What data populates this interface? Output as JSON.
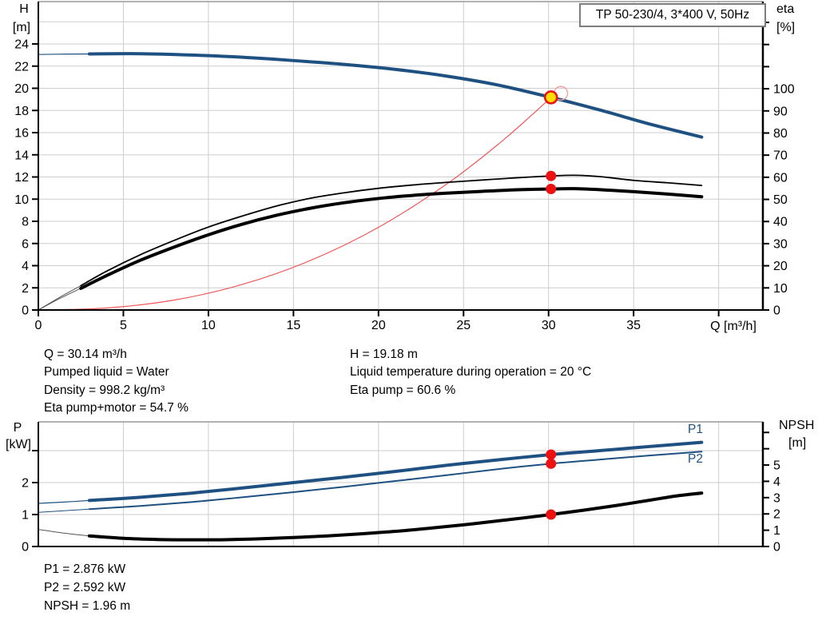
{
  "pump_title": "TP 50-230/4, 3*400 V, 50Hz",
  "colors": {
    "curve_blue": "#1e5181",
    "curve_black": "#000000",
    "lead_gray": "#555555",
    "system_red": "#ef5858",
    "dot_red": "#ee1111",
    "duty_yellow": "#ffdf00",
    "grid": "#cdcdcd",
    "frame": "#999999"
  },
  "results_top_left": [
    "Q = 30.14 m³/h",
    "Pumped liquid = Water",
    "Density = 998.2 kg/m³",
    "Eta pump+motor = 54.7 %"
  ],
  "results_top_right": [
    "H = 19.18 m",
    "Liquid temperature during operation = 20 °C",
    "Eta pump = 60.6 %"
  ],
  "results_bottom": [
    "P1 = 2.876 kW",
    "P2 = 2.592 kW",
    "NPSH = 1.96 m"
  ],
  "curve_labels": {
    "p1": "P1",
    "p2": "P2"
  },
  "chart_data": [
    {
      "id": "hq-eta-chart",
      "type": "line",
      "title": "TP 50-230/4, 3*400 V, 50Hz",
      "x_axis": {
        "label": "Q [m³/h]",
        "min": 0,
        "max": 42.6,
        "ticks": [
          0,
          5,
          10,
          15,
          20,
          25,
          30,
          35
        ],
        "minor_ticks": [
          40
        ],
        "gridlines": [
          5,
          10,
          15,
          20,
          25,
          30,
          35,
          40
        ]
      },
      "y_left": {
        "label": "H [m]",
        "min": 0,
        "max": 27.82,
        "ticks": [
          0,
          2,
          4,
          6,
          8,
          10,
          12,
          14,
          16,
          18,
          20,
          22,
          24
        ],
        "minor_ticks": [],
        "gridlines": [
          2,
          4,
          6,
          8,
          10,
          12,
          14,
          16,
          18,
          20,
          22,
          24,
          26
        ]
      },
      "y_right": {
        "label": "eta [%]",
        "min": 0,
        "max": 139.4,
        "ticks": [
          0,
          10,
          20,
          30,
          40,
          50,
          60,
          70,
          80,
          90,
          100
        ],
        "minor_ticks": [
          110,
          120,
          130
        ]
      },
      "series": [
        {
          "name": "system-curve",
          "axis": "left",
          "color": "#ef5858",
          "width": 1.2,
          "points": [
            [
              0,
              0
            ],
            [
              4,
              0.18
            ],
            [
              8,
              0.9
            ],
            [
              12,
              2.31
            ],
            [
              16,
              4.47
            ],
            [
              20,
              7.46
            ],
            [
              24,
              11.35
            ],
            [
              27,
              14.9
            ],
            [
              29,
              17.57
            ],
            [
              30.14,
              19.18
            ]
          ]
        },
        {
          "name": "head-curve-lead",
          "axis": "left",
          "color": "#1e5181",
          "width": 1.2,
          "points": [
            [
              0,
              23.05
            ],
            [
              1.5,
              23.08
            ],
            [
              3.5,
              23.1
            ]
          ]
        },
        {
          "name": "head-curve",
          "axis": "left",
          "color": "#1e5181",
          "width": 4,
          "points": [
            [
              3,
              23.1
            ],
            [
              6,
              23.12
            ],
            [
              9,
              23.0
            ],
            [
              12,
              22.8
            ],
            [
              15,
              22.5
            ],
            [
              18,
              22.15
            ],
            [
              21,
              21.7
            ],
            [
              24,
              21.1
            ],
            [
              27,
              20.3
            ],
            [
              30.14,
              19.18
            ],
            [
              33,
              18.05
            ],
            [
              36,
              16.75
            ],
            [
              39,
              15.6
            ]
          ]
        },
        {
          "name": "eta-pump-curve-lead",
          "axis": "right",
          "color": "#555555",
          "width": 1,
          "points": [
            [
              0,
              0
            ],
            [
              1.2,
              5.5
            ],
            [
              2.5,
              11
            ]
          ]
        },
        {
          "name": "eta-pump-curve",
          "axis": "right",
          "color": "#000000",
          "width": 1.8,
          "points": [
            [
              2.5,
              11
            ],
            [
              4,
              17.5
            ],
            [
              6,
              25
            ],
            [
              8,
              31.5
            ],
            [
              10,
              37.5
            ],
            [
              12,
              42.5
            ],
            [
              14,
              47
            ],
            [
              16,
              50.5
            ],
            [
              18,
              53
            ],
            [
              20,
              55
            ],
            [
              22,
              56.5
            ],
            [
              24,
              57.7
            ],
            [
              26,
              58.7
            ],
            [
              28,
              59.7
            ],
            [
              30.14,
              60.6
            ],
            [
              31.5,
              60.9
            ],
            [
              33,
              60.3
            ],
            [
              35,
              58.6
            ],
            [
              37,
              57.5
            ],
            [
              39,
              56.3
            ]
          ]
        },
        {
          "name": "eta-pump-motor-curve-lead",
          "axis": "right",
          "color": "#555555",
          "width": 1,
          "points": [
            [
              0,
              0
            ],
            [
              1.2,
              5
            ],
            [
              2.5,
              9.8
            ]
          ]
        },
        {
          "name": "eta-pump-motor-curve",
          "axis": "right",
          "color": "#000000",
          "width": 4,
          "points": [
            [
              2.5,
              9.8
            ],
            [
              4,
              15.5
            ],
            [
              6,
              22.5
            ],
            [
              8,
              28.5
            ],
            [
              10,
              34
            ],
            [
              12,
              38.8
            ],
            [
              14,
              42.8
            ],
            [
              16,
              46
            ],
            [
              18,
              48.5
            ],
            [
              20,
              50.4
            ],
            [
              22,
              51.8
            ],
            [
              24,
              52.8
            ],
            [
              26,
              53.6
            ],
            [
              28,
              54.3
            ],
            [
              30.14,
              54.7
            ],
            [
              31.5,
              54.85
            ],
            [
              33,
              54.4
            ],
            [
              35,
              53.5
            ],
            [
              37,
              52.4
            ],
            [
              39,
              51.2
            ]
          ]
        }
      ],
      "markers": [
        {
          "name": "duty-point-ghost",
          "axis": "left",
          "q": 30.72,
          "v": 19.55,
          "r": 8.5,
          "fill": "none",
          "stroke": "#f59f9f",
          "sw": 1.4,
          "interactable": false
        },
        {
          "name": "duty-point",
          "axis": "left",
          "q": 30.14,
          "v": 19.18,
          "r": 7.5,
          "fill": "#ffdf00",
          "stroke": "#ee1111",
          "sw": 2.6,
          "interactable": true
        },
        {
          "name": "eta-pump-dot",
          "axis": "right",
          "q": 30.14,
          "v": 60.6,
          "r": 6.5,
          "fill": "#ee1111",
          "stroke": "none",
          "sw": 0,
          "interactable": false
        },
        {
          "name": "eta-pump-motor-dot",
          "axis": "right",
          "q": 30.14,
          "v": 54.7,
          "r": 6.5,
          "fill": "#ee1111",
          "stroke": "none",
          "sw": 0,
          "interactable": false
        }
      ]
    },
    {
      "id": "power-npsh-chart",
      "type": "line",
      "x_axis": {
        "label": "",
        "min": 0,
        "max": 42.6,
        "ticks": [],
        "minor_ticks": [],
        "gridlines": [
          5,
          10,
          15,
          20,
          25,
          30,
          35,
          40
        ]
      },
      "y_left": {
        "label": "P [kW]",
        "min": 0,
        "max": 3.9,
        "ticks": [
          0,
          1,
          2
        ],
        "minor_ticks": [
          3
        ],
        "gridlines": [
          1,
          2,
          3
        ]
      },
      "y_right": {
        "label": "NPSH [m]",
        "min": 0,
        "max": 7.65,
        "ticks": [
          0,
          1,
          2,
          3,
          4,
          5
        ],
        "minor_ticks": [
          6,
          7
        ]
      },
      "series": [
        {
          "name": "p1-curve-lead",
          "axis": "left",
          "color": "#1e5181",
          "width": 1.2,
          "points": [
            [
              0,
              1.35
            ],
            [
              1.5,
              1.39
            ],
            [
              3,
              1.44
            ]
          ]
        },
        {
          "name": "p1-curve",
          "axis": "left",
          "color": "#1e5181",
          "width": 4,
          "points": [
            [
              3,
              1.44
            ],
            [
              6,
              1.54
            ],
            [
              9,
              1.67
            ],
            [
              12,
              1.83
            ],
            [
              15,
              2.0
            ],
            [
              18,
              2.17
            ],
            [
              21,
              2.35
            ],
            [
              24,
              2.54
            ],
            [
              27,
              2.71
            ],
            [
              30.14,
              2.876
            ],
            [
              33,
              3.0
            ],
            [
              36,
              3.13
            ],
            [
              39,
              3.26
            ]
          ]
        },
        {
          "name": "p2-curve-lead",
          "axis": "left",
          "color": "#1e5181",
          "width": 1,
          "points": [
            [
              0,
              1.07
            ],
            [
              1.5,
              1.12
            ],
            [
              3,
              1.17
            ]
          ]
        },
        {
          "name": "p2-curve",
          "axis": "left",
          "color": "#1e5181",
          "width": 2,
          "points": [
            [
              3,
              1.17
            ],
            [
              6,
              1.27
            ],
            [
              9,
              1.39
            ],
            [
              12,
              1.54
            ],
            [
              15,
              1.7
            ],
            [
              18,
              1.87
            ],
            [
              21,
              2.05
            ],
            [
              24,
              2.23
            ],
            [
              27,
              2.42
            ],
            [
              30.14,
              2.592
            ],
            [
              33,
              2.72
            ],
            [
              36,
              2.85
            ],
            [
              39,
              2.97
            ]
          ]
        },
        {
          "name": "npsh-curve-lead",
          "axis": "right",
          "color": "#555555",
          "width": 1,
          "points": [
            [
              0,
              1.05
            ],
            [
              1.5,
              0.82
            ],
            [
              3,
              0.65
            ]
          ]
        },
        {
          "name": "npsh-curve",
          "axis": "right",
          "color": "#000000",
          "width": 4,
          "points": [
            [
              3,
              0.65
            ],
            [
              5,
              0.5
            ],
            [
              7,
              0.43
            ],
            [
              9,
              0.41
            ],
            [
              11,
              0.42
            ],
            [
              13,
              0.47
            ],
            [
              15,
              0.55
            ],
            [
              17,
              0.65
            ],
            [
              19,
              0.78
            ],
            [
              21,
              0.93
            ],
            [
              23,
              1.12
            ],
            [
              25,
              1.33
            ],
            [
              27,
              1.57
            ],
            [
              28.5,
              1.75
            ],
            [
              30.14,
              1.96
            ],
            [
              32,
              2.22
            ],
            [
              34,
              2.52
            ],
            [
              36,
              2.85
            ],
            [
              37.5,
              3.1
            ],
            [
              39,
              3.28
            ]
          ]
        }
      ],
      "markers": [
        {
          "name": "p1-dot",
          "axis": "left",
          "q": 30.14,
          "v": 2.876,
          "r": 6.5,
          "fill": "#ee1111",
          "stroke": "none",
          "sw": 0,
          "interactable": false
        },
        {
          "name": "p2-dot",
          "axis": "left",
          "q": 30.14,
          "v": 2.592,
          "r": 6.5,
          "fill": "#ee1111",
          "stroke": "none",
          "sw": 0,
          "interactable": false
        },
        {
          "name": "npsh-dot",
          "axis": "right",
          "q": 30.14,
          "v": 1.96,
          "r": 6.5,
          "fill": "#ee1111",
          "stroke": "none",
          "sw": 0,
          "interactable": false
        }
      ]
    }
  ]
}
